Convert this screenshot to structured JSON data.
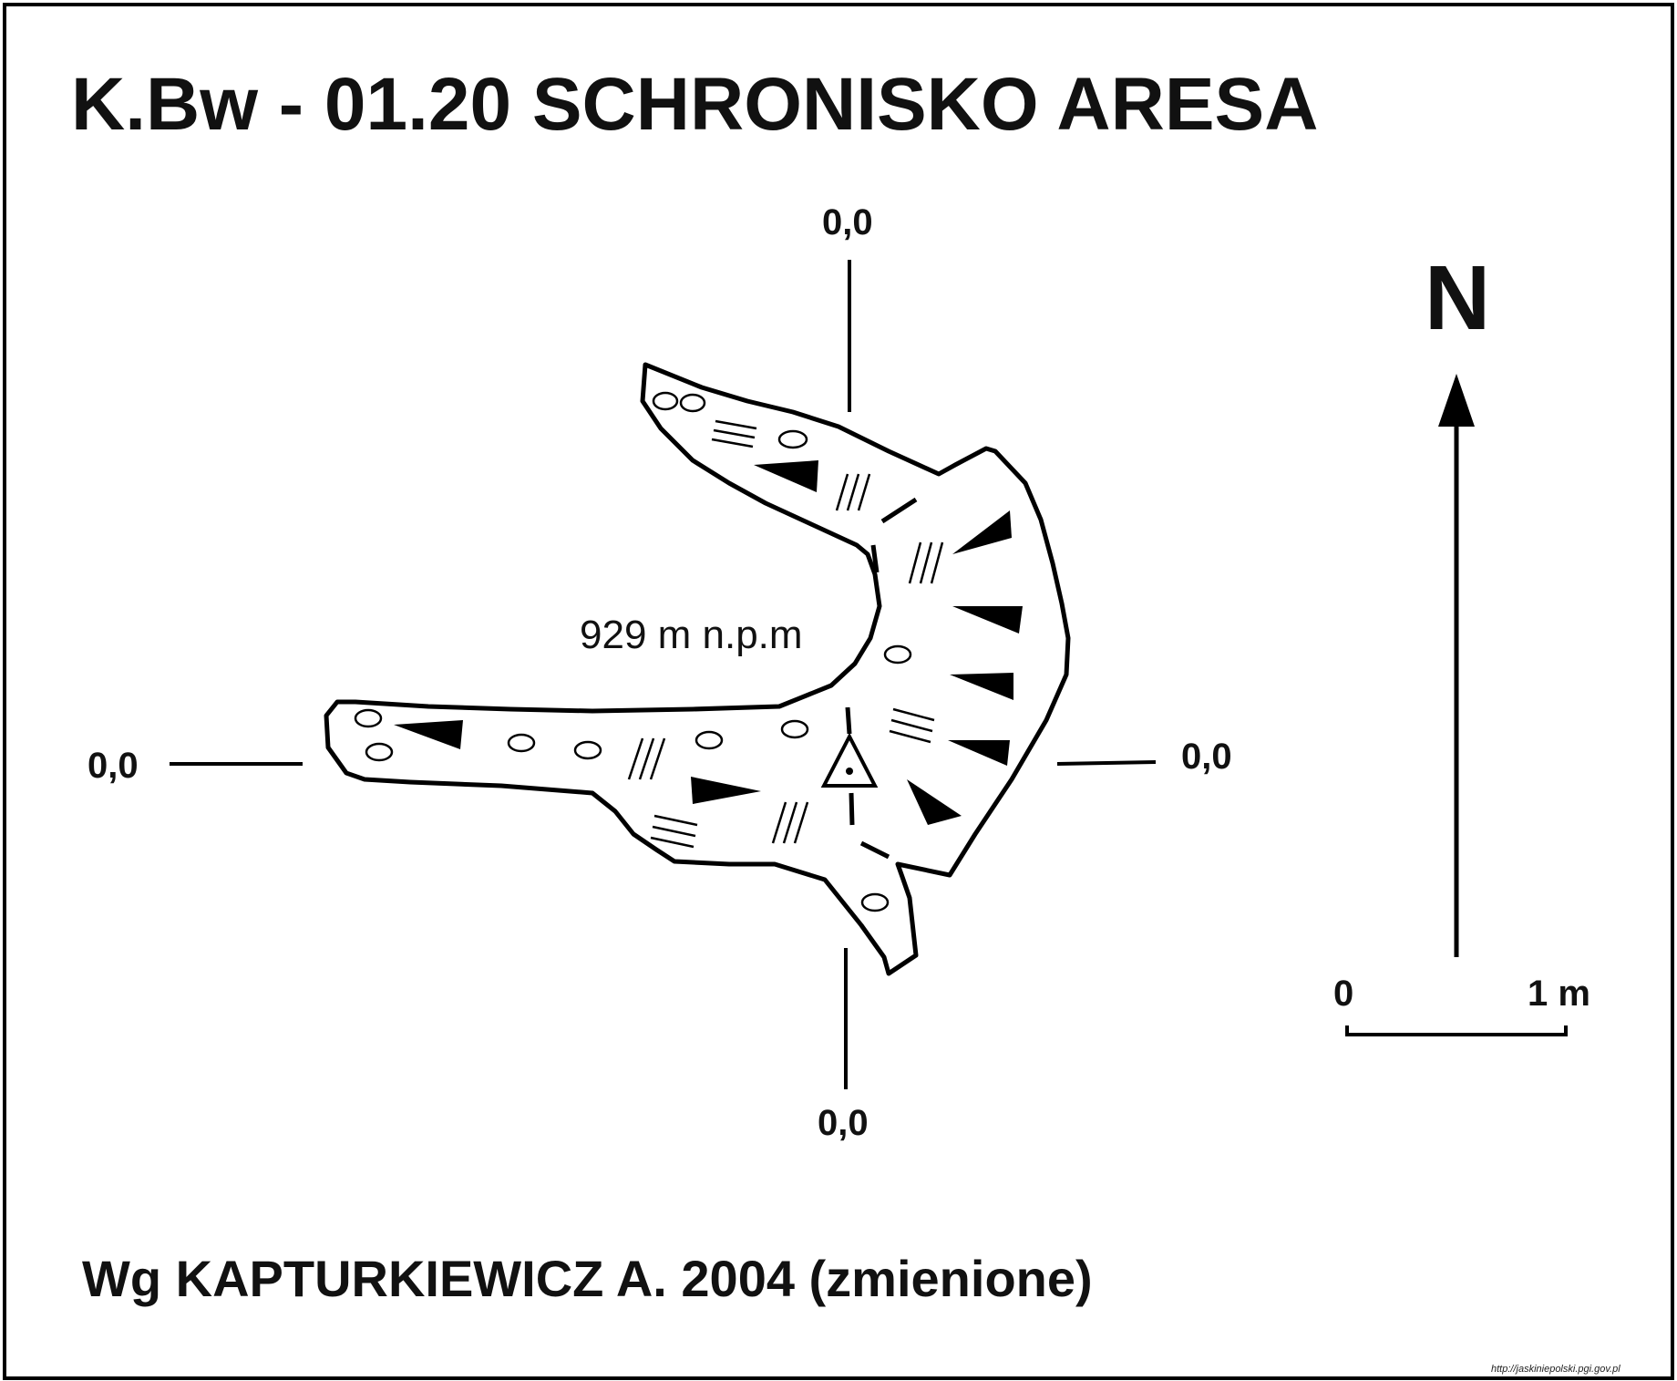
{
  "title": "K.Bw - 01.20  SCHRONISKO ARESA",
  "north_label": "N",
  "elevation_label": "929 m n.p.m",
  "section_labels": {
    "top": "0,0",
    "left": "0,0",
    "right": "0,0",
    "bottom": "0,0"
  },
  "scale": {
    "start": "0",
    "end": "1 m"
  },
  "credit": "Wg KAPTURKIEWICZ A. 2004 (zmienione)",
  "source_url": "http://jaskiniepolski.pgi.gov.pl",
  "colors": {
    "ink": "#000000",
    "background": "#ffffff"
  }
}
